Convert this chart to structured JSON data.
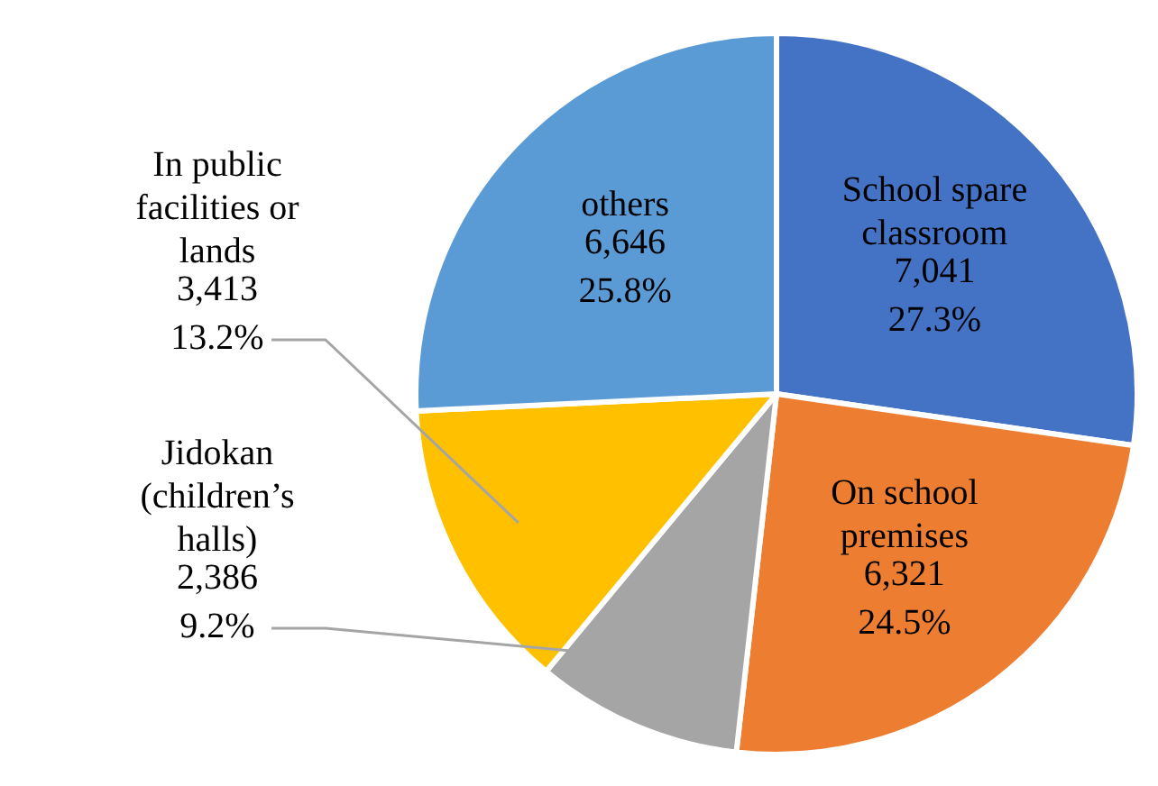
{
  "chart_data": {
    "type": "pie",
    "categories": [
      "School spare classroom",
      "On school premises",
      "Jidokan (children’s halls)",
      "In public facilities or lands",
      "others"
    ],
    "values": [
      7041,
      6321,
      2386,
      3413,
      6646
    ],
    "value_labels": [
      "7,041\n27.3%",
      "6,321\n24.5%",
      "2,386\n9.2%",
      "3,413\n13.2%",
      "6,646\n25.8%"
    ],
    "colors": [
      "#4472c4",
      "#ed7d31",
      "#a5a5a5",
      "#ffc000",
      "#5b9bd5"
    ]
  }
}
